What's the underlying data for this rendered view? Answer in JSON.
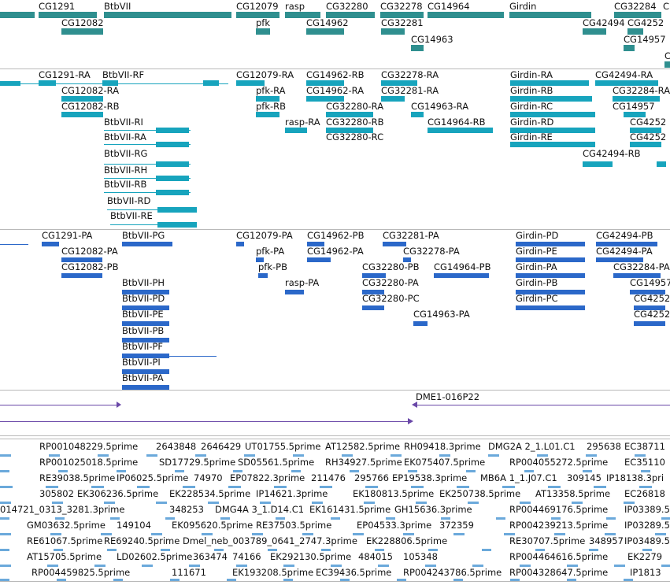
{
  "colors": {
    "gene": "#2f8f8f",
    "transcript": "#17a4bd",
    "protein": "#2b68c9",
    "clone": "#6a48a8",
    "est": "#6ba9db"
  },
  "tracks": {
    "genes": {
      "labels": [
        {
          "id": "g1",
          "text": "CG1291"
        },
        {
          "id": "g2",
          "text": "BtbVII"
        },
        {
          "id": "g3",
          "text": "CG12079"
        },
        {
          "id": "g4",
          "text": "rasp"
        },
        {
          "id": "g5",
          "text": "CG32280"
        },
        {
          "id": "g6",
          "text": "CG32278"
        },
        {
          "id": "g7",
          "text": "CG14964"
        },
        {
          "id": "g8",
          "text": "Girdin"
        },
        {
          "id": "g9",
          "text": "CG32284"
        },
        {
          "id": "g10",
          "text": "C"
        },
        {
          "id": "g11",
          "text": "CG12082"
        },
        {
          "id": "g12",
          "text": "pfk"
        },
        {
          "id": "g13",
          "text": "CG14962"
        },
        {
          "id": "g14",
          "text": "CG32281"
        },
        {
          "id": "g15",
          "text": "CG42494"
        },
        {
          "id": "g16",
          "text": "CG4252"
        },
        {
          "id": "g17",
          "text": "CG14963"
        },
        {
          "id": "g18",
          "text": "CG14957"
        },
        {
          "id": "g19",
          "text": "C"
        }
      ]
    },
    "transcripts": {
      "labels": [
        {
          "id": "t1",
          "text": "CG1291-RA"
        },
        {
          "id": "t2",
          "text": "BtbVII-RF"
        },
        {
          "id": "t3",
          "text": "CG12079-RA"
        },
        {
          "id": "t4",
          "text": "CG14962-RB"
        },
        {
          "id": "t5",
          "text": "CG32278-RA"
        },
        {
          "id": "t6",
          "text": "Girdin-RA"
        },
        {
          "id": "t7",
          "text": "CG42494-RA"
        },
        {
          "id": "t8",
          "text": "CG12082-RA"
        },
        {
          "id": "t9",
          "text": "pfk-RA"
        },
        {
          "id": "t10",
          "text": "CG14962-RA"
        },
        {
          "id": "t11",
          "text": "CG32281-RA"
        },
        {
          "id": "t12",
          "text": "Girdin-RB"
        },
        {
          "id": "t13",
          "text": "CG32284-RA"
        },
        {
          "id": "t14",
          "text": "CG12082-RB"
        },
        {
          "id": "t15",
          "text": "pfk-RB"
        },
        {
          "id": "t16",
          "text": "CG32280-RA"
        },
        {
          "id": "t17",
          "text": "CG14963-RA"
        },
        {
          "id": "t18",
          "text": "Girdin-RC"
        },
        {
          "id": "t19",
          "text": "CG14957"
        },
        {
          "id": "t20",
          "text": "BtbVII-RI"
        },
        {
          "id": "t21",
          "text": "rasp-RA"
        },
        {
          "id": "t22",
          "text": "CG32280-RB"
        },
        {
          "id": "t23",
          "text": "CG14964-RB"
        },
        {
          "id": "t24",
          "text": "Girdin-RD"
        },
        {
          "id": "t25",
          "text": "CG4252"
        },
        {
          "id": "t26",
          "text": "BtbVII-RA"
        },
        {
          "id": "t27",
          "text": "CG32280-RC"
        },
        {
          "id": "t28",
          "text": "Girdin-RE"
        },
        {
          "id": "t29",
          "text": "CG4252"
        },
        {
          "id": "t30",
          "text": "BtbVII-RG"
        },
        {
          "id": "t31",
          "text": "CG42494-RB"
        },
        {
          "id": "t32",
          "text": "BtbVII-RH"
        },
        {
          "id": "t33",
          "text": "BtbVII-RB"
        },
        {
          "id": "t34",
          "text": "BtbVII-RD"
        },
        {
          "id": "t35",
          "text": "BtbVII-RE"
        }
      ]
    },
    "proteins": {
      "labels": [
        {
          "id": "p1",
          "text": "CG1291-PA"
        },
        {
          "id": "p2",
          "text": "BtbVII-PG"
        },
        {
          "id": "p3",
          "text": "CG12079-PA"
        },
        {
          "id": "p4",
          "text": "CG14962-PB"
        },
        {
          "id": "p5",
          "text": "CG32281-PA"
        },
        {
          "id": "p6",
          "text": "Girdin-PD"
        },
        {
          "id": "p7",
          "text": "CG42494-PB"
        },
        {
          "id": "p8",
          "text": "CG12082-PA"
        },
        {
          "id": "p9",
          "text": "pfk-PA"
        },
        {
          "id": "p10",
          "text": "CG14962-PA"
        },
        {
          "id": "p11",
          "text": "CG32278-PA"
        },
        {
          "id": "p12",
          "text": "Girdin-PE"
        },
        {
          "id": "p13",
          "text": "CG42494-PA"
        },
        {
          "id": "p14",
          "text": "CG12082-PB"
        },
        {
          "id": "p15",
          "text": "pfk-PB"
        },
        {
          "id": "p16",
          "text": "CG32280-PB"
        },
        {
          "id": "p17",
          "text": "CG14964-PB"
        },
        {
          "id": "p18",
          "text": "Girdin-PA"
        },
        {
          "id": "p19",
          "text": "CG32284-PA"
        },
        {
          "id": "p20",
          "text": "rasp-PA"
        },
        {
          "id": "p21",
          "text": "CG32280-PA"
        },
        {
          "id": "p22",
          "text": "Girdin-PB"
        },
        {
          "id": "p23",
          "text": "CG14957"
        },
        {
          "id": "p24",
          "text": "BtbVII-PH"
        },
        {
          "id": "p25",
          "text": "CG32280-PC"
        },
        {
          "id": "p26",
          "text": "Girdin-PC"
        },
        {
          "id": "p27",
          "text": "CG4252"
        },
        {
          "id": "p28",
          "text": "BtbVII-PD"
        },
        {
          "id": "p29",
          "text": "CG14963-PA"
        },
        {
          "id": "p30",
          "text": "CG4252"
        },
        {
          "id": "p31",
          "text": "BtbVII-PE"
        },
        {
          "id": "p32",
          "text": "BtbVII-PB"
        },
        {
          "id": "p33",
          "text": "BtbVII-PF"
        },
        {
          "id": "p34",
          "text": "BtbVII-PI"
        },
        {
          "id": "p35",
          "text": "BtbVII-PA"
        }
      ]
    },
    "clones": {
      "labels": [
        {
          "id": "c1",
          "text": "DME1-016P22"
        }
      ]
    },
    "ests": {
      "labels": [
        {
          "id": "e1",
          "text": "RP001048229.5prime"
        },
        {
          "id": "e2",
          "text": "2643848"
        },
        {
          "id": "e3",
          "text": "2646429"
        },
        {
          "id": "e4",
          "text": "UT01755.5prime"
        },
        {
          "id": "e5",
          "text": "AT12582.5prime"
        },
        {
          "id": "e6",
          "text": "RH09418.3prime"
        },
        {
          "id": "e7",
          "text": "DMG2A 2_1.L01.C1"
        },
        {
          "id": "e8",
          "text": "295638"
        },
        {
          "id": "e9",
          "text": "EC38711"
        },
        {
          "id": "e10",
          "text": "RP001025018.5prime"
        },
        {
          "id": "e11",
          "text": "SD17729.5prime"
        },
        {
          "id": "e12",
          "text": "SD05561.5prime"
        },
        {
          "id": "e13",
          "text": "RH34927.5prime"
        },
        {
          "id": "e14",
          "text": "EK075407.5prime"
        },
        {
          "id": "e15",
          "text": "RP004055272.5prime"
        },
        {
          "id": "e16",
          "text": "EC35110"
        },
        {
          "id": "e17",
          "text": "RE39038.5prime"
        },
        {
          "id": "e18",
          "text": "IP06025.5prime"
        },
        {
          "id": "e19",
          "text": "74970"
        },
        {
          "id": "e20",
          "text": "EP07822.3prime"
        },
        {
          "id": "e21",
          "text": "211476"
        },
        {
          "id": "e22",
          "text": "295766"
        },
        {
          "id": "e23",
          "text": "EP19538.3prime"
        },
        {
          "id": "e24",
          "text": "MB6A 1_1.J07.C1"
        },
        {
          "id": "e25",
          "text": "309145"
        },
        {
          "id": "e26",
          "text": "IP18138.3pri"
        },
        {
          "id": "e27",
          "text": "305802"
        },
        {
          "id": "e28",
          "text": "EK306236.5prime"
        },
        {
          "id": "e29",
          "text": "EK228534.5prime"
        },
        {
          "id": "e30",
          "text": "IP14621.3prime"
        },
        {
          "id": "e31",
          "text": "EK180813.5prime"
        },
        {
          "id": "e32",
          "text": "EK250738.5prime"
        },
        {
          "id": "e33",
          "text": "AT13358.5prime"
        },
        {
          "id": "e34",
          "text": "EC26818"
        },
        {
          "id": "e35",
          "text": "014721_0313_3281.3prime"
        },
        {
          "id": "e36",
          "text": "348253"
        },
        {
          "id": "e37",
          "text": "DMG4A 3_1.D14.C1"
        },
        {
          "id": "e38",
          "text": "EK161431.5prime"
        },
        {
          "id": "e39",
          "text": "GH15636.3prime"
        },
        {
          "id": "e40",
          "text": "RP004469176.5prime"
        },
        {
          "id": "e41",
          "text": "IP03389.5"
        },
        {
          "id": "e42",
          "text": "GM03632.5prime"
        },
        {
          "id": "e43",
          "text": "149104"
        },
        {
          "id": "e44",
          "text": "EK095620.5prime"
        },
        {
          "id": "e45",
          "text": "RE37503.5prime"
        },
        {
          "id": "e46",
          "text": "EP04533.3prime"
        },
        {
          "id": "e47",
          "text": "372359"
        },
        {
          "id": "e48",
          "text": "RP004239213.5prime"
        },
        {
          "id": "e49",
          "text": "IP03289.5"
        },
        {
          "id": "e50",
          "text": "RE61067.5prime"
        },
        {
          "id": "e51",
          "text": "RE69240.5prime"
        },
        {
          "id": "e52",
          "text": "Dmel_neb_003789_0641_2747.3prime"
        },
        {
          "id": "e53",
          "text": "EK228806.5prime"
        },
        {
          "id": "e54",
          "text": "RE30707.5prime"
        },
        {
          "id": "e55",
          "text": "348957"
        },
        {
          "id": "e56",
          "text": "IP03489.5"
        },
        {
          "id": "e57",
          "text": "AT15705.5prime"
        },
        {
          "id": "e58",
          "text": "LD02602.5prime"
        },
        {
          "id": "e59",
          "text": "363474"
        },
        {
          "id": "e60",
          "text": "74166"
        },
        {
          "id": "e61",
          "text": "EK292130.5prime"
        },
        {
          "id": "e62",
          "text": "484015"
        },
        {
          "id": "e63",
          "text": "105348"
        },
        {
          "id": "e64",
          "text": "RP004464616.5prime"
        },
        {
          "id": "e65",
          "text": "EK2279"
        },
        {
          "id": "e66",
          "text": "RP004459825.5prime"
        },
        {
          "id": "e67",
          "text": "111671"
        },
        {
          "id": "e68",
          "text": "EK193208.5prime"
        },
        {
          "id": "e69",
          "text": "EC39436.5prime"
        },
        {
          "id": "e70",
          "text": "RP004243786.5prime"
        },
        {
          "id": "e71",
          "text": "RP004328647.5prime"
        },
        {
          "id": "e72",
          "text": "IP1813"
        }
      ]
    }
  }
}
